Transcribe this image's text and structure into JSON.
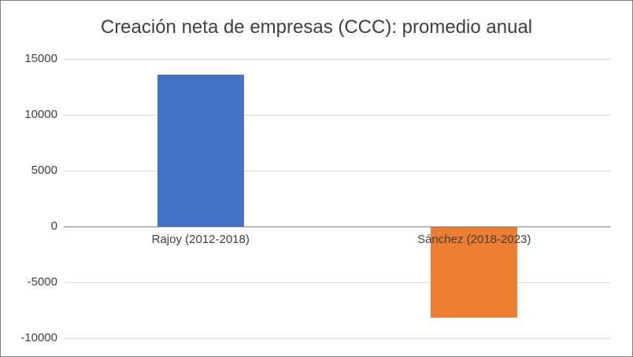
{
  "chart_data": {
    "type": "bar",
    "title": "Creación neta de empresas (CCC): promedio anual",
    "categories": [
      "Rajoy (2012-2018)",
      "Sánchez (2018-2023)"
    ],
    "values": [
      13600,
      -8200
    ],
    "bar_colors": [
      "#4472C4",
      "#ED7D31"
    ],
    "xlabel": "",
    "ylabel": "",
    "ylim": [
      -10000,
      15000
    ],
    "ytick_step": 5000,
    "ytick_labels": [
      "15000",
      "10000",
      "5000",
      "0",
      "-5000",
      "-10000"
    ],
    "grid": true,
    "legend": "none",
    "colors": {
      "title_text": "#404040",
      "axis_text": "#404040",
      "gridline": "#d9d9d9",
      "zero_axis_line": "#808080",
      "frame_border": "#7f7f7f",
      "background": "#ffffff"
    }
  }
}
